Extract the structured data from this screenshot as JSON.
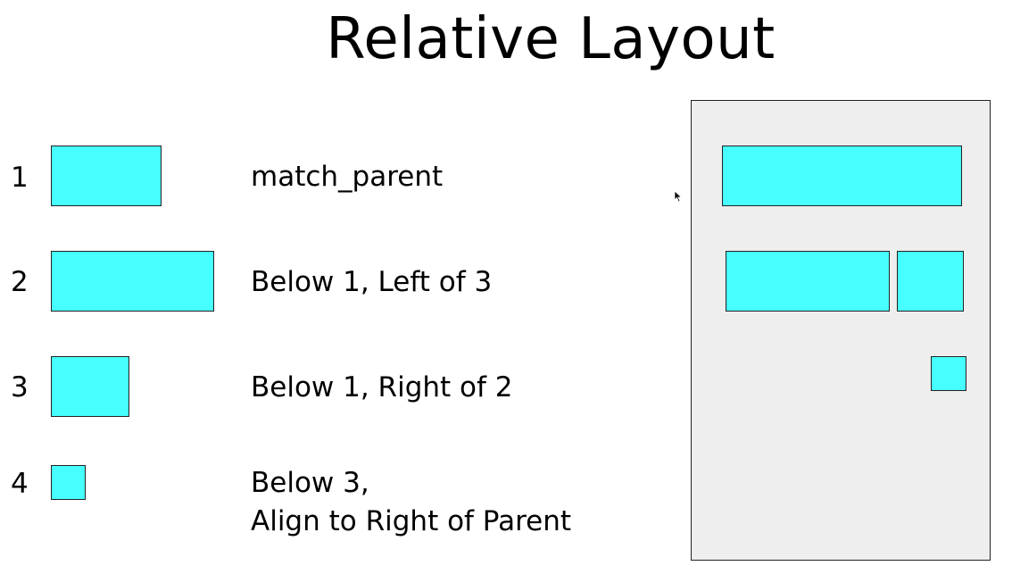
{
  "slide": {
    "title": "Relative Layout"
  },
  "rows": [
    {
      "number": "1",
      "description_lines": [
        "match_parent"
      ]
    },
    {
      "number": "2",
      "description_lines": [
        "Below 1, Left of 3"
      ]
    },
    {
      "number": "3",
      "description_lines": [
        "Below 1, Right of 2"
      ]
    },
    {
      "number": "4",
      "description_lines": [
        "Below 3,",
        "Align to Right of Parent"
      ]
    }
  ],
  "colors": {
    "box_fill": "#47ffff",
    "parent_fill": "#eeeeee",
    "border": "#222222",
    "text": "#000000"
  },
  "icons": {
    "cursor": "mouse-pointer-icon"
  }
}
